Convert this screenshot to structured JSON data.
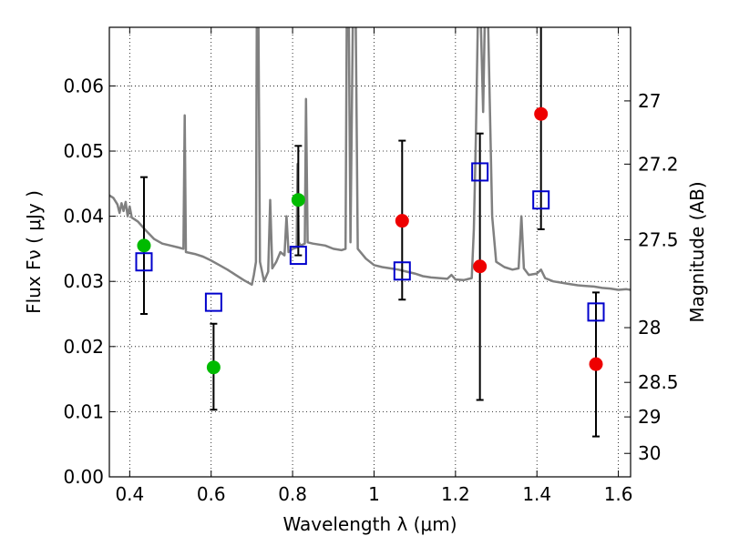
{
  "chart_data": {
    "type": "scatter",
    "xlabel": "Wavelength  λ (μm)",
    "ylabel": "Flux  Fν  ( μJy )",
    "ylabel_right": "Magnitude (AB)",
    "xlim": [
      0.35,
      1.63
    ],
    "ylim": [
      0.0,
      0.069
    ],
    "x_ticks": [
      0.4,
      0.6,
      0.8,
      1.0,
      1.2,
      1.4,
      1.6
    ],
    "x_tick_labels": [
      "0.4",
      "0.6",
      "0.8",
      "1",
      "1.2",
      "1.4",
      "1.6"
    ],
    "y_ticks": [
      0.0,
      0.01,
      0.02,
      0.03,
      0.04,
      0.05,
      0.06
    ],
    "y_tick_labels": [
      "0.00",
      "0.01",
      "0.02",
      "0.03",
      "0.04",
      "0.05",
      "0.06"
    ],
    "right_ticks": [
      {
        "flux": 0.0577,
        "label": "27"
      },
      {
        "flux": 0.048,
        "label": "27.2"
      },
      {
        "flux": 0.0364,
        "label": "27.5"
      },
      {
        "flux": 0.0229,
        "label": "28"
      },
      {
        "flux": 0.0145,
        "label": "28.5"
      },
      {
        "flux": 0.0092,
        "label": "29"
      },
      {
        "flux": 0.0036,
        "label": "30"
      }
    ],
    "grid": true,
    "colors": {
      "model": "#808080",
      "green": "#00bb00",
      "red": "#ee0000",
      "box": "#0000cc",
      "errorbar": "#000000"
    },
    "series": [
      {
        "marker": "circle-green",
        "points": [
          {
            "x": 0.435,
            "y": 0.0355,
            "ylo": 0.025,
            "yhi": 0.046
          },
          {
            "x": 0.606,
            "y": 0.0168,
            "ylo": 0.0103,
            "yhi": 0.0235
          },
          {
            "x": 0.814,
            "y": 0.0425,
            "ylo": 0.034,
            "yhi": 0.0508
          }
        ]
      },
      {
        "marker": "circle-red",
        "points": [
          {
            "x": 1.069,
            "y": 0.0393,
            "ylo": 0.0272,
            "yhi": 0.0516
          },
          {
            "x": 1.26,
            "y": 0.0323,
            "ylo": 0.0118,
            "yhi": 0.0527
          },
          {
            "x": 1.41,
            "y": 0.0557,
            "ylo": 0.038,
            "yhi": 0.07
          },
          {
            "x": 1.545,
            "y": 0.0173,
            "ylo": 0.0062,
            "yhi": 0.0283
          }
        ]
      },
      {
        "marker": "square-blue",
        "points": [
          {
            "x": 0.435,
            "y": 0.033
          },
          {
            "x": 0.606,
            "y": 0.0268
          },
          {
            "x": 0.814,
            "y": 0.034
          },
          {
            "x": 1.069,
            "y": 0.0316
          },
          {
            "x": 1.26,
            "y": 0.0468
          },
          {
            "x": 1.41,
            "y": 0.0425
          },
          {
            "x": 1.545,
            "y": 0.0253
          }
        ]
      }
    ],
    "model_spectrum": [
      [
        0.35,
        0.0432
      ],
      [
        0.36,
        0.0428
      ],
      [
        0.37,
        0.0418
      ],
      [
        0.375,
        0.0405
      ],
      [
        0.38,
        0.042
      ],
      [
        0.385,
        0.0408
      ],
      [
        0.39,
        0.0422
      ],
      [
        0.395,
        0.04
      ],
      [
        0.4,
        0.0415
      ],
      [
        0.405,
        0.0398
      ],
      [
        0.42,
        0.0392
      ],
      [
        0.44,
        0.0378
      ],
      [
        0.46,
        0.0365
      ],
      [
        0.48,
        0.0358
      ],
      [
        0.5,
        0.0355
      ],
      [
        0.52,
        0.0352
      ],
      [
        0.532,
        0.035
      ],
      [
        0.535,
        0.0555
      ],
      [
        0.538,
        0.0345
      ],
      [
        0.56,
        0.0342
      ],
      [
        0.58,
        0.0338
      ],
      [
        0.6,
        0.0332
      ],
      [
        0.62,
        0.0325
      ],
      [
        0.64,
        0.0318
      ],
      [
        0.66,
        0.031
      ],
      [
        0.68,
        0.0302
      ],
      [
        0.7,
        0.0295
      ],
      [
        0.705,
        0.031
      ],
      [
        0.71,
        0.033
      ],
      [
        0.712,
        0.07
      ],
      [
        0.716,
        0.07
      ],
      [
        0.72,
        0.033
      ],
      [
        0.73,
        0.03
      ],
      [
        0.74,
        0.0315
      ],
      [
        0.745,
        0.0425
      ],
      [
        0.75,
        0.032
      ],
      [
        0.76,
        0.033
      ],
      [
        0.77,
        0.0345
      ],
      [
        0.78,
        0.034
      ],
      [
        0.785,
        0.04
      ],
      [
        0.79,
        0.0345
      ],
      [
        0.8,
        0.035
      ],
      [
        0.81,
        0.0352
      ],
      [
        0.812,
        0.048
      ],
      [
        0.815,
        0.036
      ],
      [
        0.82,
        0.0355
      ],
      [
        0.83,
        0.0358
      ],
      [
        0.833,
        0.058
      ],
      [
        0.837,
        0.036
      ],
      [
        0.85,
        0.0358
      ],
      [
        0.88,
        0.0355
      ],
      [
        0.9,
        0.035
      ],
      [
        0.92,
        0.0348
      ],
      [
        0.93,
        0.035
      ],
      [
        0.933,
        0.07
      ],
      [
        0.938,
        0.07
      ],
      [
        0.942,
        0.036
      ],
      [
        0.948,
        0.07
      ],
      [
        0.955,
        0.07
      ],
      [
        0.96,
        0.035
      ],
      [
        0.98,
        0.0335
      ],
      [
        1.0,
        0.0325
      ],
      [
        1.02,
        0.0322
      ],
      [
        1.04,
        0.032
      ],
      [
        1.06,
        0.0318
      ],
      [
        1.08,
        0.0315
      ],
      [
        1.1,
        0.0312
      ],
      [
        1.12,
        0.0308
      ],
      [
        1.14,
        0.0306
      ],
      [
        1.16,
        0.0305
      ],
      [
        1.18,
        0.0304
      ],
      [
        1.19,
        0.031
      ],
      [
        1.2,
        0.0303
      ],
      [
        1.22,
        0.0302
      ],
      [
        1.24,
        0.0305
      ],
      [
        1.245,
        0.038
      ],
      [
        1.25,
        0.052
      ],
      [
        1.255,
        0.07
      ],
      [
        1.262,
        0.07
      ],
      [
        1.268,
        0.056
      ],
      [
        1.272,
        0.07
      ],
      [
        1.28,
        0.07
      ],
      [
        1.29,
        0.04
      ],
      [
        1.3,
        0.033
      ],
      [
        1.32,
        0.0322
      ],
      [
        1.34,
        0.0318
      ],
      [
        1.355,
        0.032
      ],
      [
        1.362,
        0.04
      ],
      [
        1.368,
        0.032
      ],
      [
        1.38,
        0.031
      ],
      [
        1.4,
        0.0312
      ],
      [
        1.41,
        0.0318
      ],
      [
        1.42,
        0.0305
      ],
      [
        1.44,
        0.03
      ],
      [
        1.46,
        0.0298
      ],
      [
        1.48,
        0.0296
      ],
      [
        1.5,
        0.0294
      ],
      [
        1.52,
        0.0293
      ],
      [
        1.54,
        0.0292
      ],
      [
        1.56,
        0.029
      ],
      [
        1.58,
        0.0289
      ],
      [
        1.6,
        0.0287
      ],
      [
        1.62,
        0.0288
      ],
      [
        1.63,
        0.0287
      ]
    ]
  }
}
